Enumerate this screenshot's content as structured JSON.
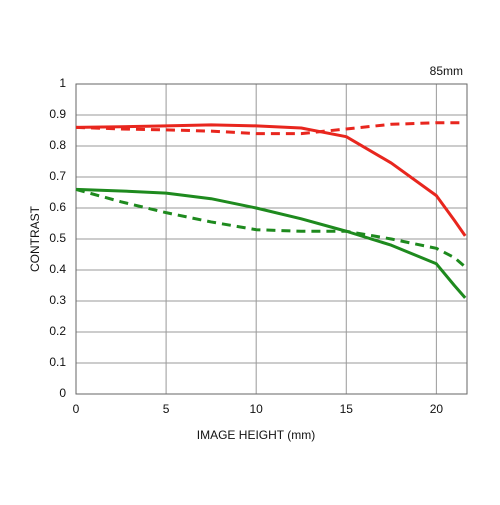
{
  "chart_data": {
    "type": "line",
    "title": "85mm",
    "xlabel": "IMAGE HEIGHT (mm)",
    "ylabel": "CONTRAST",
    "x": [
      0,
      2.5,
      5,
      7.5,
      10,
      12.5,
      15,
      17.5,
      20,
      21,
      21.6
    ],
    "series": [
      {
        "color": "#e8261e",
        "line_style": "solid",
        "values": [
          0.86,
          0.862,
          0.865,
          0.868,
          0.865,
          0.858,
          0.83,
          0.745,
          0.64,
          0.56,
          0.51
        ]
      },
      {
        "color": "#e8261e",
        "line_style": "dashed",
        "values": [
          0.86,
          0.855,
          0.852,
          0.848,
          0.84,
          0.84,
          0.855,
          0.87,
          0.875,
          0.875,
          0.875
        ]
      },
      {
        "color": "#1e8a1e",
        "line_style": "solid",
        "values": [
          0.66,
          0.655,
          0.648,
          0.63,
          0.6,
          0.565,
          0.525,
          0.48,
          0.42,
          0.35,
          0.31
        ]
      },
      {
        "color": "#1e8a1e",
        "line_style": "dashed",
        "values": [
          0.66,
          0.62,
          0.585,
          0.555,
          0.53,
          0.525,
          0.525,
          0.5,
          0.47,
          0.44,
          0.41
        ]
      }
    ],
    "xlim": [
      0,
      21.7
    ],
    "xticks": [
      0,
      5,
      10,
      15,
      20
    ],
    "ylim": [
      0,
      1
    ],
    "yticks": [
      0,
      0.1,
      0.2,
      0.3,
      0.4,
      0.5,
      0.6,
      0.7,
      0.8,
      0.9,
      1
    ],
    "grid": true
  }
}
